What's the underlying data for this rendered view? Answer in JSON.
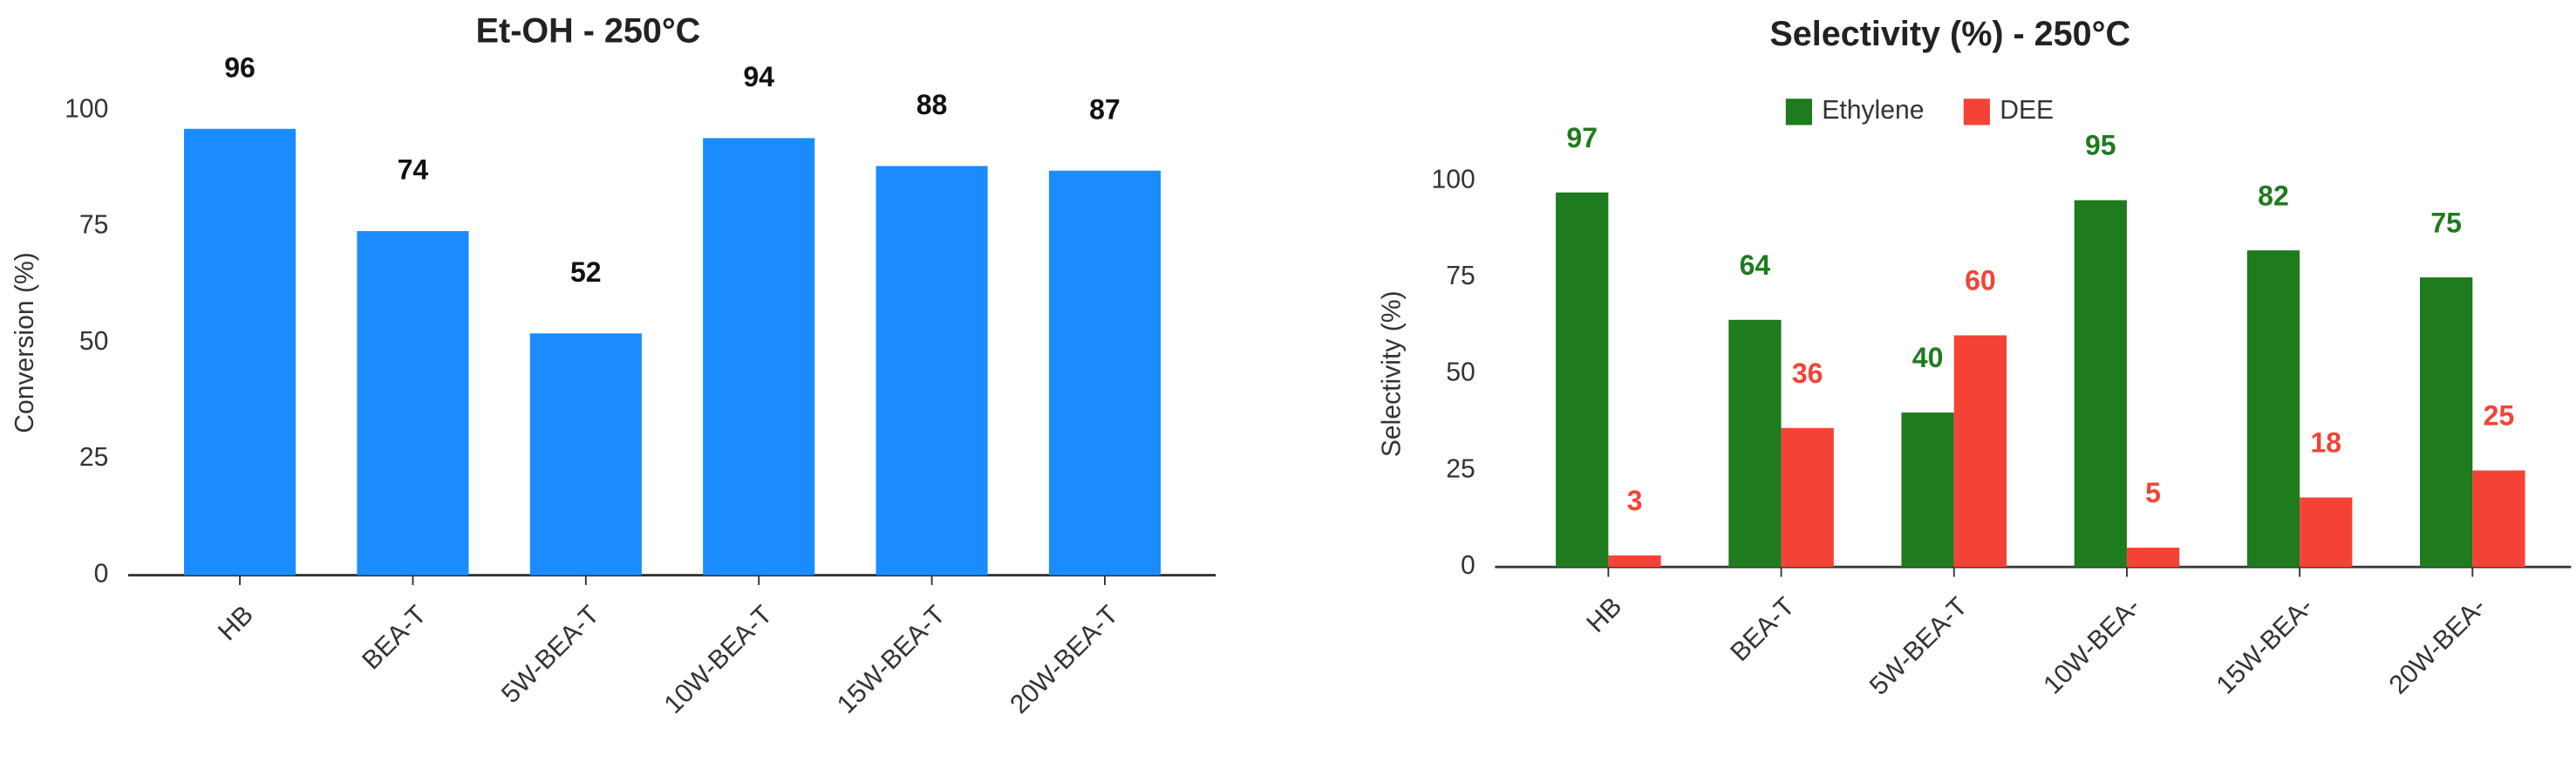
{
  "chart_data": [
    {
      "type": "bar",
      "title": "Et-OH - 250°C",
      "ylabel": "Conversion (%)",
      "categories": [
        "HB",
        "BEA-T",
        "5W-BEA-T",
        "10W-BEA-T",
        "15W-BEA-T",
        "20W-BEA-T"
      ],
      "values": [
        96,
        74,
        52,
        94,
        88,
        87
      ],
      "color": "#1a8cff",
      "ylim": [
        0,
        100
      ],
      "yticks": [
        0,
        25,
        50,
        75,
        100
      ],
      "grid": false
    },
    {
      "type": "bar",
      "title": "Selectivity (%) - 250°C",
      "ylabel": "Selectivity (%)",
      "categories": [
        "HB",
        "BEA-T",
        "5W-BEA-T",
        "10W-BEA-",
        "15W-BEA-",
        "20W-BEA-"
      ],
      "series": [
        {
          "name": "Ethylene",
          "color": "#1e7b1e",
          "values": [
            97,
            64,
            40,
            95,
            82,
            75
          ]
        },
        {
          "name": "DEE",
          "color": "#f44336",
          "values": [
            3,
            36,
            60,
            5,
            18,
            25
          ]
        }
      ],
      "ylim": [
        0,
        100
      ],
      "yticks": [
        0,
        25,
        50,
        75,
        100
      ],
      "grid": false,
      "legend": "top"
    }
  ]
}
